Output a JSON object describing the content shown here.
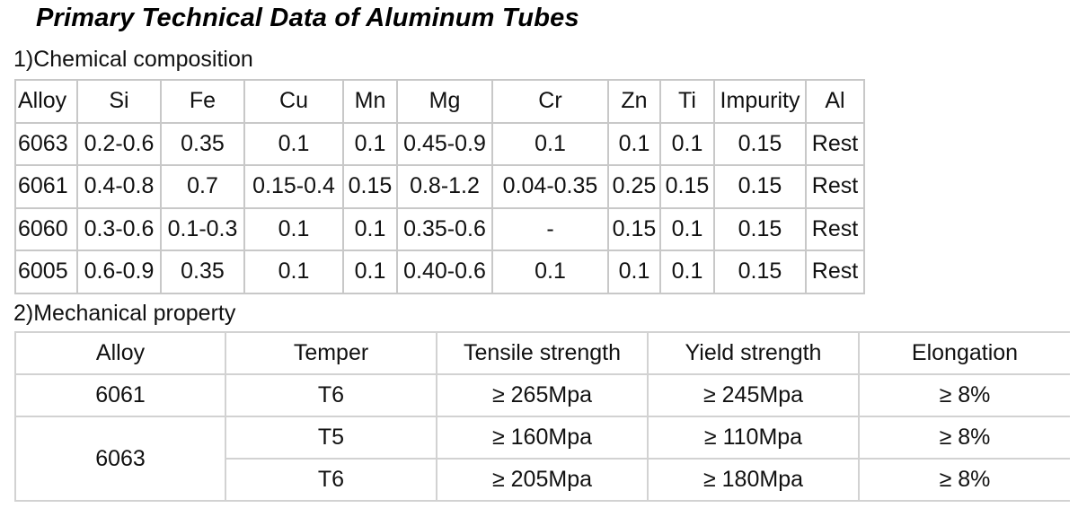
{
  "title": "Primary Technical Data of Aluminum Tubes",
  "chemical": {
    "label": "1)Chemical composition",
    "headers": [
      "Alloy",
      "Si",
      "Fe",
      "Cu",
      "Mn",
      "Mg",
      "Cr",
      "Zn",
      "Ti",
      "Impurity",
      "Al"
    ],
    "rows": [
      [
        "6063",
        "0.2-0.6",
        "0.35",
        "0.1",
        "0.1",
        "0.45-0.9",
        "0.1",
        "0.1",
        "0.1",
        "0.15",
        "Rest"
      ],
      [
        "6061",
        "0.4-0.8",
        "0.7",
        "0.15-0.4",
        "0.15",
        "0.8-1.2",
        "0.04-0.35",
        "0.25",
        "0.15",
        "0.15",
        "Rest"
      ],
      [
        "6060",
        "0.3-0.6",
        "0.1-0.3",
        "0.1",
        "0.1",
        "0.35-0.6",
        "-",
        "0.15",
        "0.1",
        "0.15",
        "Rest"
      ],
      [
        "6005",
        "0.6-0.9",
        "0.35",
        "0.1",
        "0.1",
        "0.40-0.6",
        "0.1",
        "0.1",
        "0.1",
        "0.15",
        "Rest"
      ]
    ]
  },
  "mechanical": {
    "label": "2)Mechanical property",
    "headers": [
      "Alloy",
      "Temper",
      "Tensile strength",
      "Yield strength",
      "Elongation"
    ],
    "rows": [
      {
        "alloy": "6061",
        "temper": "T6",
        "tensile": "≥ 265Mpa",
        "yield": "≥ 245Mpa",
        "elongation": "≥ 8%"
      },
      {
        "alloy": "6063",
        "temper": "T5",
        "tensile": "≥ 160Mpa",
        "yield": "≥ 110Mpa",
        "elongation": "≥ 8%"
      },
      {
        "alloy": "",
        "temper": "T6",
        "tensile": "≥ 205Mpa",
        "yield": "≥ 180Mpa",
        "elongation": "≥ 8%"
      }
    ]
  }
}
